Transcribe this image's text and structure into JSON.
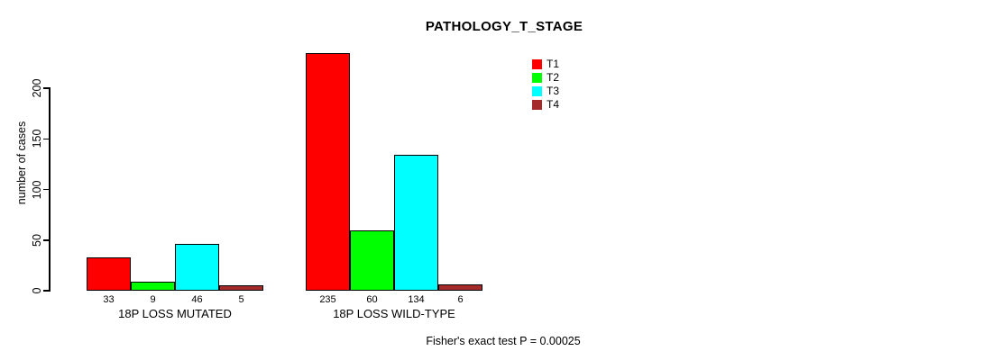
{
  "chart_data": {
    "type": "bar",
    "title": "PATHOLOGY_T_STAGE",
    "ylabel": "number of cases",
    "xlabel": "",
    "categories": [
      "18P LOSS MUTATED",
      "18P LOSS WILD-TYPE"
    ],
    "series": [
      {
        "name": "T1",
        "color": "#FF0000",
        "values": [
          33,
          235
        ]
      },
      {
        "name": "T2",
        "color": "#00FF00",
        "values": [
          9,
          60
        ]
      },
      {
        "name": "T3",
        "color": "#00FFFF",
        "values": [
          46,
          134
        ]
      },
      {
        "name": "T4",
        "color": "#A52A2A",
        "values": [
          5,
          6
        ]
      }
    ],
    "yticks": [
      0,
      50,
      100,
      150,
      200
    ],
    "ylim": [
      0,
      245
    ],
    "grid": false,
    "show_bar_value_labels": true,
    "legend_position": "top-right",
    "annotation": "Fisher's exact test P = 0.00025"
  }
}
